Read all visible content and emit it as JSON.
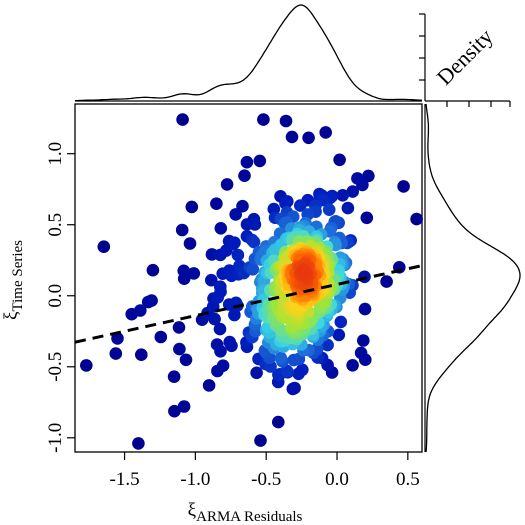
{
  "chart_data": {
    "type": "scatter",
    "title": "",
    "xlabel_symbol": "ξ",
    "xlabel_subscript": "ARMA Residuals",
    "ylabel_symbol": "ξ",
    "ylabel_subscript": "Time Series",
    "density_label": "Density",
    "xlim": [
      -1.85,
      0.6
    ],
    "ylim": [
      -1.1,
      1.35
    ],
    "x_ticks": [
      -1.5,
      -1.0,
      -0.5,
      0.0,
      0.5
    ],
    "x_tick_labels": [
      "-1.5",
      "-1.0",
      "-0.5",
      "0.0",
      "0.5"
    ],
    "y_ticks": [
      -1.0,
      -0.5,
      0.0,
      0.5,
      1.0
    ],
    "y_tick_labels": [
      "-1.0",
      "-0.5",
      "0.0",
      "0.5",
      "1.0"
    ],
    "regression_line": {
      "intercept": 0.08,
      "slope": 0.22,
      "style": "dashed"
    },
    "point_color_scale": "point density (blue = low, red = high)",
    "colors": {
      "low": "#00008f",
      "mid_low": "#1e6fd9",
      "mid": "#3ad6e6",
      "mid_high": "#9be63c",
      "high_mid": "#ffd21a",
      "high": "#ff6a00",
      "max": "#e8380d",
      "line": "#000000"
    },
    "marginal_x_density": "smooth density curve of x values, peak near -0.25",
    "marginal_y_density": "smooth density curve of y values, peak near 0.1",
    "grid": false,
    "legend": "none"
  }
}
